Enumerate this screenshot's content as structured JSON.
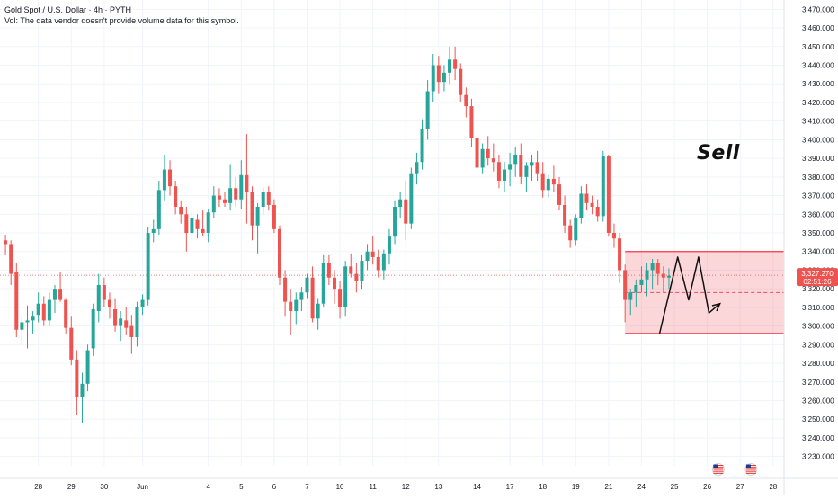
{
  "legend": {
    "title": "Gold Spot / U.S. Dollar · 4h · PYTH",
    "volume_note": "Vol: The data vendor doesn't provide volume data for this symbol."
  },
  "annotation": {
    "text": "Sell"
  },
  "price_label": {
    "price": "3,327.270",
    "countdown": "02:51:26"
  },
  "colors": {
    "up": "#26a69a",
    "down": "#ef5350",
    "zone_fill": "rgba(242,54,69,0.2)",
    "zone_line": "#f23645",
    "background": "#ffffff",
    "grid": "#f0f3fa",
    "text": "#131722"
  },
  "icons": [
    "us-flag-icon",
    "us-flag-icon"
  ],
  "chart_data": {
    "type": "candlestick",
    "symbol": "Gold Spot / U.S. Dollar",
    "interval": "4h",
    "source": "PYTH",
    "ylim": [
      3225,
      3475
    ],
    "y_ticks": [
      "3,470.000",
      "3,460.000",
      "3,450.000",
      "3,440.000",
      "3,430.000",
      "3,420.000",
      "3,410.000",
      "3,400.000",
      "3,390.000",
      "3,380.000",
      "3,370.000",
      "3,360.000",
      "3,350.000",
      "3,340.000",
      "3,330.000",
      "3,320.000",
      "3,310.000",
      "3,300.000",
      "3,290.000",
      "3,280.000",
      "3,270.000",
      "3,260.000",
      "3,250.000",
      "3,240.000",
      "3,230.000"
    ],
    "y_tick_values": [
      3470,
      3460,
      3450,
      3440,
      3430,
      3420,
      3410,
      3400,
      3390,
      3380,
      3370,
      3360,
      3350,
      3340,
      3330,
      3320,
      3310,
      3300,
      3290,
      3280,
      3270,
      3260,
      3250,
      3240,
      3230
    ],
    "x_tick_labels": [
      "28",
      "29",
      "30",
      "Jun",
      "4",
      "5",
      "6",
      "7",
      "10",
      "11",
      "12",
      "13",
      "14",
      "17",
      "18",
      "19",
      "21",
      "24",
      "25",
      "26",
      "27",
      "28"
    ],
    "x_tick_index": [
      6,
      12,
      18,
      25,
      37,
      43,
      49,
      55,
      61,
      67,
      73,
      79,
      86,
      92,
      98,
      104,
      110,
      116,
      122,
      128,
      134,
      140
    ],
    "current_price": 3327.27,
    "candles": [
      [
        3346,
        3349,
        3338,
        3344
      ],
      [
        3344,
        3346,
        3322,
        3328
      ],
      [
        3329,
        3334,
        3294,
        3298
      ],
      [
        3298,
        3306,
        3290,
        3302
      ],
      [
        3302,
        3311,
        3288,
        3303
      ],
      [
        3303,
        3308,
        3296,
        3305
      ],
      [
        3306,
        3318,
        3302,
        3312
      ],
      [
        3312,
        3316,
        3300,
        3303
      ],
      [
        3303,
        3318,
        3300,
        3314
      ],
      [
        3314,
        3322,
        3307,
        3320
      ],
      [
        3320,
        3329,
        3313,
        3314
      ],
      [
        3314,
        3315,
        3296,
        3299
      ],
      [
        3299,
        3305,
        3279,
        3282
      ],
      [
        3282,
        3287,
        3252,
        3262
      ],
      [
        3262,
        3275,
        3248,
        3269
      ],
      [
        3269,
        3290,
        3265,
        3287
      ],
      [
        3288,
        3312,
        3284,
        3309
      ],
      [
        3308,
        3328,
        3302,
        3322
      ],
      [
        3322,
        3326,
        3310,
        3314
      ],
      [
        3314,
        3318,
        3304,
        3310
      ],
      [
        3309,
        3315,
        3297,
        3300
      ],
      [
        3300,
        3308,
        3292,
        3304
      ],
      [
        3303,
        3310,
        3295,
        3299
      ],
      [
        3300,
        3306,
        3285,
        3294
      ],
      [
        3294,
        3313,
        3289,
        3310
      ],
      [
        3310,
        3317,
        3306,
        3314
      ],
      [
        3314,
        3353,
        3311,
        3350
      ],
      [
        3350,
        3357,
        3345,
        3352
      ],
      [
        3352,
        3378,
        3349,
        3373
      ],
      [
        3373,
        3392,
        3367,
        3384
      ],
      [
        3384,
        3389,
        3370,
        3375
      ],
      [
        3375,
        3378,
        3360,
        3364
      ],
      [
        3364,
        3367,
        3355,
        3360
      ],
      [
        3360,
        3364,
        3340,
        3350
      ],
      [
        3350,
        3361,
        3346,
        3358
      ],
      [
        3357,
        3360,
        3347,
        3352
      ],
      [
        3352,
        3362,
        3348,
        3350
      ],
      [
        3350,
        3363,
        3345,
        3361
      ],
      [
        3361,
        3375,
        3358,
        3370
      ],
      [
        3370,
        3374,
        3364,
        3368
      ],
      [
        3368,
        3372,
        3364,
        3366
      ],
      [
        3366,
        3387,
        3362,
        3374
      ],
      [
        3374,
        3380,
        3364,
        3368
      ],
      [
        3368,
        3389,
        3363,
        3381
      ],
      [
        3381,
        3403,
        3355,
        3372
      ],
      [
        3372,
        3375,
        3346,
        3354
      ],
      [
        3354,
        3366,
        3339,
        3364
      ],
      [
        3364,
        3374,
        3360,
        3372
      ],
      [
        3372,
        3375,
        3362,
        3365
      ],
      [
        3365,
        3368,
        3350,
        3352
      ],
      [
        3352,
        3354,
        3322,
        3326
      ],
      [
        3326,
        3330,
        3305,
        3313
      ],
      [
        3313,
        3320,
        3295,
        3308
      ],
      [
        3308,
        3318,
        3301,
        3314
      ],
      [
        3314,
        3321,
        3308,
        3318
      ],
      [
        3318,
        3328,
        3315,
        3326
      ],
      [
        3326,
        3332,
        3302,
        3304
      ],
      [
        3304,
        3315,
        3298,
        3312
      ],
      [
        3312,
        3338,
        3310,
        3334
      ],
      [
        3334,
        3338,
        3322,
        3326
      ],
      [
        3326,
        3330,
        3312,
        3320
      ],
      [
        3320,
        3324,
        3304,
        3310
      ],
      [
        3310,
        3335,
        3305,
        3332
      ],
      [
        3332,
        3339,
        3326,
        3328
      ],
      [
        3328,
        3334,
        3318,
        3324
      ],
      [
        3324,
        3338,
        3320,
        3335
      ],
      [
        3335,
        3344,
        3330,
        3340
      ],
      [
        3340,
        3348,
        3333,
        3337
      ],
      [
        3337,
        3341,
        3326,
        3330
      ],
      [
        3330,
        3341,
        3325,
        3339
      ],
      [
        3339,
        3352,
        3333,
        3348
      ],
      [
        3348,
        3367,
        3344,
        3364
      ],
      [
        3364,
        3372,
        3358,
        3368
      ],
      [
        3368,
        3378,
        3346,
        3355
      ],
      [
        3355,
        3385,
        3352,
        3382
      ],
      [
        3382,
        3393,
        3376,
        3388
      ],
      [
        3388,
        3411,
        3384,
        3406
      ],
      [
        3406,
        3432,
        3400,
        3426
      ],
      [
        3426,
        3446,
        3420,
        3440
      ],
      [
        3440,
        3445,
        3425,
        3431
      ],
      [
        3431,
        3440,
        3426,
        3436
      ],
      [
        3436,
        3450,
        3430,
        3443
      ],
      [
        3443,
        3450,
        3432,
        3438
      ],
      [
        3438,
        3441,
        3420,
        3424
      ],
      [
        3424,
        3428,
        3412,
        3418
      ],
      [
        3418,
        3422,
        3396,
        3401
      ],
      [
        3401,
        3405,
        3380,
        3385
      ],
      [
        3385,
        3398,
        3382,
        3395
      ],
      [
        3395,
        3402,
        3386,
        3390
      ],
      [
        3390,
        3398,
        3383,
        3388
      ],
      [
        3388,
        3392,
        3374,
        3378
      ],
      [
        3378,
        3388,
        3372,
        3384
      ],
      [
        3384,
        3393,
        3375,
        3387
      ],
      [
        3387,
        3396,
        3380,
        3392
      ],
      [
        3392,
        3398,
        3376,
        3380
      ],
      [
        3380,
        3388,
        3372,
        3386
      ],
      [
        3386,
        3392,
        3378,
        3388
      ],
      [
        3388,
        3394,
        3378,
        3382
      ],
      [
        3382,
        3388,
        3369,
        3373
      ],
      [
        3373,
        3381,
        3369,
        3379
      ],
      [
        3379,
        3386,
        3372,
        3376
      ],
      [
        3376,
        3380,
        3362,
        3365
      ],
      [
        3365,
        3370,
        3350,
        3354
      ],
      [
        3354,
        3357,
        3342,
        3346
      ],
      [
        3346,
        3360,
        3343,
        3358
      ],
      [
        3358,
        3375,
        3355,
        3371
      ],
      [
        3371,
        3376,
        3362,
        3366
      ],
      [
        3366,
        3370,
        3360,
        3364
      ],
      [
        3364,
        3368,
        3356,
        3359
      ],
      [
        3359,
        3394,
        3356,
        3391
      ],
      [
        3391,
        3392,
        3348,
        3350
      ],
      [
        3350,
        3355,
        3342,
        3347
      ],
      [
        3347,
        3350,
        3323,
        3330
      ],
      [
        3330,
        3333,
        3302,
        3314
      ],
      [
        3314,
        3320,
        3306,
        3318
      ],
      [
        3318,
        3325,
        3310,
        3322
      ],
      [
        3322,
        3332,
        3318,
        3325
      ],
      [
        3325,
        3334,
        3316,
        3330
      ],
      [
        3330,
        3336,
        3320,
        3334
      ],
      [
        3334,
        3336,
        3322,
        3328
      ],
      [
        3328,
        3332,
        3318,
        3326
      ],
      [
        3326,
        3331,
        3320,
        3327
      ]
    ],
    "x_index_range": [
      -1,
      142
    ],
    "zone": {
      "x_index_start": 113,
      "x_index_end": 142,
      "top": 3340,
      "bottom": 3296
    },
    "zone_midline": 3318,
    "projection_path": [
      [
        119.3,
        3296
      ],
      [
        122.6,
        3337
      ],
      [
        124.6,
        3314
      ],
      [
        126.4,
        3337
      ],
      [
        128.3,
        3307
      ],
      [
        130.3,
        3312
      ]
    ],
    "timezone_icons_x_index": [
      130,
      136
    ],
    "annotation": "Sell"
  }
}
